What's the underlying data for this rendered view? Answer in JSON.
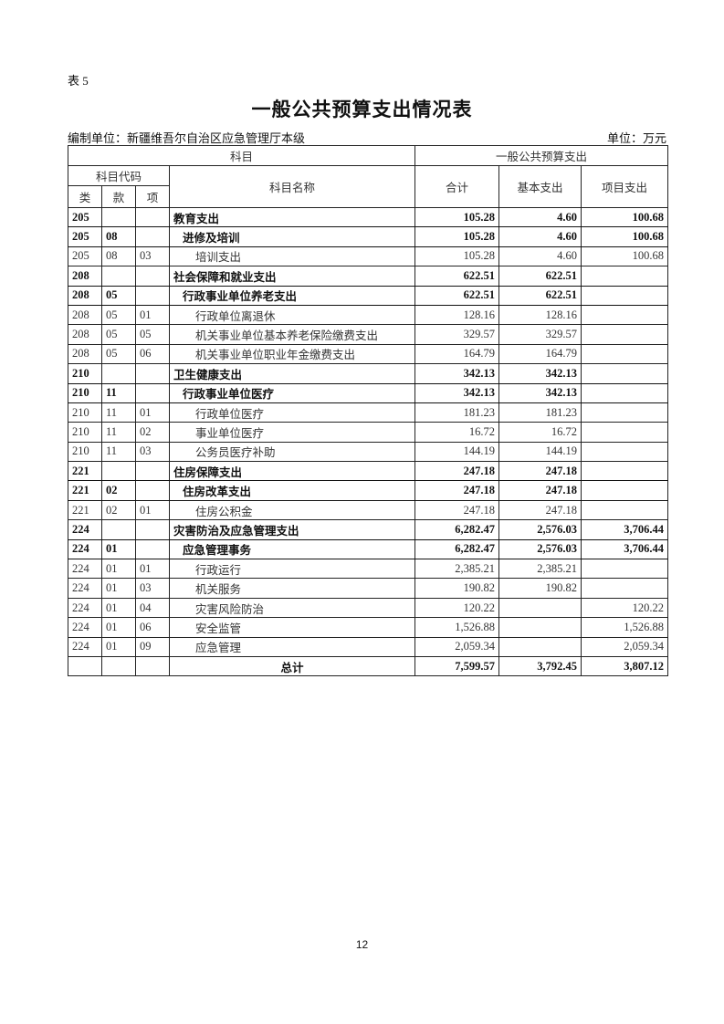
{
  "table_tag": "表 5",
  "title": "一般公共预算支出情况表",
  "compiler": "编制单位：新疆维吾尔自治区应急管理厅本级",
  "unit": "单位：万元",
  "headers": {
    "subject": "科目",
    "budget": "一般公共预算支出",
    "code": "科目代码",
    "name": "科目名称",
    "total": "合计",
    "basic": "基本支出",
    "project": "项目支出",
    "lei": "类",
    "kuan": "款",
    "xiang": "项"
  },
  "rows": [
    {
      "level": 1,
      "lei": "205",
      "kuan": "",
      "xiang": "",
      "name": "教育支出",
      "total": "105.28",
      "basic": "4.60",
      "project": "100.68"
    },
    {
      "level": 2,
      "lei": "205",
      "kuan": "08",
      "xiang": "",
      "name": "进修及培训",
      "total": "105.28",
      "basic": "4.60",
      "project": "100.68"
    },
    {
      "level": 3,
      "lei": "205",
      "kuan": "08",
      "xiang": "03",
      "name": "培训支出",
      "total": "105.28",
      "basic": "4.60",
      "project": "100.68"
    },
    {
      "level": 1,
      "lei": "208",
      "kuan": "",
      "xiang": "",
      "name": "社会保障和就业支出",
      "total": "622.51",
      "basic": "622.51",
      "project": ""
    },
    {
      "level": 2,
      "lei": "208",
      "kuan": "05",
      "xiang": "",
      "name": "行政事业单位养老支出",
      "total": "622.51",
      "basic": "622.51",
      "project": ""
    },
    {
      "level": 3,
      "lei": "208",
      "kuan": "05",
      "xiang": "01",
      "name": "行政单位离退休",
      "total": "128.16",
      "basic": "128.16",
      "project": ""
    },
    {
      "level": 3,
      "lei": "208",
      "kuan": "05",
      "xiang": "05",
      "name": "机关事业单位基本养老保险缴费支出",
      "total": "329.57",
      "basic": "329.57",
      "project": ""
    },
    {
      "level": 3,
      "lei": "208",
      "kuan": "05",
      "xiang": "06",
      "name": "机关事业单位职业年金缴费支出",
      "total": "164.79",
      "basic": "164.79",
      "project": ""
    },
    {
      "level": 1,
      "lei": "210",
      "kuan": "",
      "xiang": "",
      "name": "卫生健康支出",
      "total": "342.13",
      "basic": "342.13",
      "project": ""
    },
    {
      "level": 2,
      "lei": "210",
      "kuan": "11",
      "xiang": "",
      "name": "行政事业单位医疗",
      "total": "342.13",
      "basic": "342.13",
      "project": ""
    },
    {
      "level": 3,
      "lei": "210",
      "kuan": "11",
      "xiang": "01",
      "name": "行政单位医疗",
      "total": "181.23",
      "basic": "181.23",
      "project": ""
    },
    {
      "level": 3,
      "lei": "210",
      "kuan": "11",
      "xiang": "02",
      "name": "事业单位医疗",
      "total": "16.72",
      "basic": "16.72",
      "project": ""
    },
    {
      "level": 3,
      "lei": "210",
      "kuan": "11",
      "xiang": "03",
      "name": "公务员医疗补助",
      "total": "144.19",
      "basic": "144.19",
      "project": ""
    },
    {
      "level": 1,
      "lei": "221",
      "kuan": "",
      "xiang": "",
      "name": "住房保障支出",
      "total": "247.18",
      "basic": "247.18",
      "project": ""
    },
    {
      "level": 2,
      "lei": "221",
      "kuan": "02",
      "xiang": "",
      "name": "住房改革支出",
      "total": "247.18",
      "basic": "247.18",
      "project": ""
    },
    {
      "level": 3,
      "lei": "221",
      "kuan": "02",
      "xiang": "01",
      "name": "住房公积金",
      "total": "247.18",
      "basic": "247.18",
      "project": ""
    },
    {
      "level": 1,
      "lei": "224",
      "kuan": "",
      "xiang": "",
      "name": "灾害防治及应急管理支出",
      "total": "6,282.47",
      "basic": "2,576.03",
      "project": "3,706.44"
    },
    {
      "level": 2,
      "lei": "224",
      "kuan": "01",
      "xiang": "",
      "name": "应急管理事务",
      "total": "6,282.47",
      "basic": "2,576.03",
      "project": "3,706.44"
    },
    {
      "level": 3,
      "lei": "224",
      "kuan": "01",
      "xiang": "01",
      "name": "行政运行",
      "total": "2,385.21",
      "basic": "2,385.21",
      "project": ""
    },
    {
      "level": 3,
      "lei": "224",
      "kuan": "01",
      "xiang": "03",
      "name": "机关服务",
      "total": "190.82",
      "basic": "190.82",
      "project": ""
    },
    {
      "level": 3,
      "lei": "224",
      "kuan": "01",
      "xiang": "04",
      "name": "灾害风险防治",
      "total": "120.22",
      "basic": "",
      "project": "120.22"
    },
    {
      "level": 3,
      "lei": "224",
      "kuan": "01",
      "xiang": "06",
      "name": "安全监管",
      "total": "1,526.88",
      "basic": "",
      "project": "1,526.88"
    },
    {
      "level": 3,
      "lei": "224",
      "kuan": "01",
      "xiang": "09",
      "name": "应急管理",
      "total": "2,059.34",
      "basic": "",
      "project": "2,059.34"
    }
  ],
  "grand_total": {
    "name": "总计",
    "total": "7,599.57",
    "basic": "3,792.45",
    "project": "3,807.12"
  },
  "page_number": "12"
}
